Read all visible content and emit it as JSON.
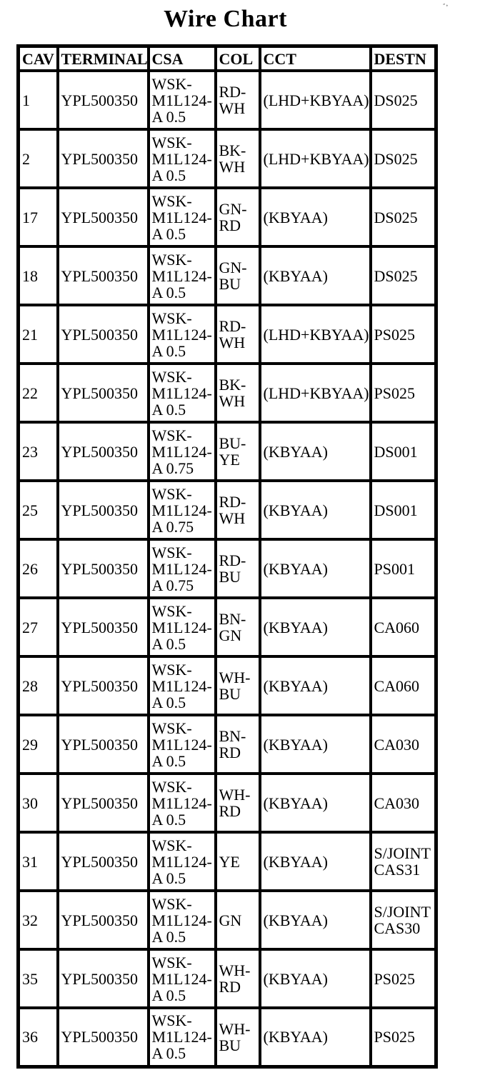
{
  "title": "Wire Chart",
  "artifacts": {
    "top_right": "-,"
  },
  "table": {
    "columns": [
      "CAV",
      "TERMINAL",
      "CSA",
      "COL",
      "CCT",
      "DESTN"
    ],
    "rows": [
      [
        "1",
        "YPL500350",
        "WSK-M1L124-A 0.5",
        "RD-WH",
        "(LHD+KBYAA)",
        "DS025"
      ],
      [
        "2",
        "YPL500350",
        "WSK-M1L124-A 0.5",
        "BK-WH",
        "(LHD+KBYAA)",
        "DS025"
      ],
      [
        "17",
        "YPL500350",
        "WSK-M1L124-A 0.5",
        "GN-RD",
        "(KBYAA)",
        "DS025"
      ],
      [
        "18",
        "YPL500350",
        "WSK-M1L124-A 0.5",
        "GN-BU",
        "(KBYAA)",
        "DS025"
      ],
      [
        "21",
        "YPL500350",
        "WSK-M1L124-A 0.5",
        "RD-WH",
        "(LHD+KBYAA)",
        "PS025"
      ],
      [
        "22",
        "YPL500350",
        "WSK-M1L124-A 0.5",
        "BK-WH",
        "(LHD+KBYAA)",
        "PS025"
      ],
      [
        "23",
        "YPL500350",
        "WSK-M1L124-A 0.75",
        "BU-YE",
        "(KBYAA)",
        "DS001"
      ],
      [
        "25",
        "YPL500350",
        "WSK-M1L124-A 0.75",
        "RD-WH",
        "(KBYAA)",
        "DS001"
      ],
      [
        "26",
        "YPL500350",
        "WSK-M1L124-A 0.75",
        "RD-BU",
        "(KBYAA)",
        "PS001"
      ],
      [
        "27",
        "YPL500350",
        "WSK-M1L124-A 0.5",
        "BN-GN",
        "(KBYAA)",
        "CA060"
      ],
      [
        "28",
        "YPL500350",
        "WSK-M1L124-A 0.5",
        "WH-BU",
        "(KBYAA)",
        "CA060"
      ],
      [
        "29",
        "YPL500350",
        "WSK-M1L124-A 0.5",
        "BN-RD",
        "(KBYAA)",
        "CA030"
      ],
      [
        "30",
        "YPL500350",
        "WSK-M1L124-A 0.5",
        "WH-RD",
        "(KBYAA)",
        "CA030"
      ],
      [
        "31",
        "YPL500350",
        "WSK-M1L124-A 0.5",
        "YE",
        "(KBYAA)",
        "S/JOINT CAS31"
      ],
      [
        "32",
        "YPL500350",
        "WSK-M1L124-A 0.5",
        "GN",
        "(KBYAA)",
        "S/JOINT CAS30"
      ],
      [
        "35",
        "YPL500350",
        "WSK-M1L124-A 0.5",
        "WH-RD",
        "(KBYAA)",
        "PS025"
      ],
      [
        "36",
        "YPL500350",
        "WSK-M1L124-A 0.5",
        "WH-BU",
        "(KBYAA)",
        "PS025"
      ]
    ]
  }
}
